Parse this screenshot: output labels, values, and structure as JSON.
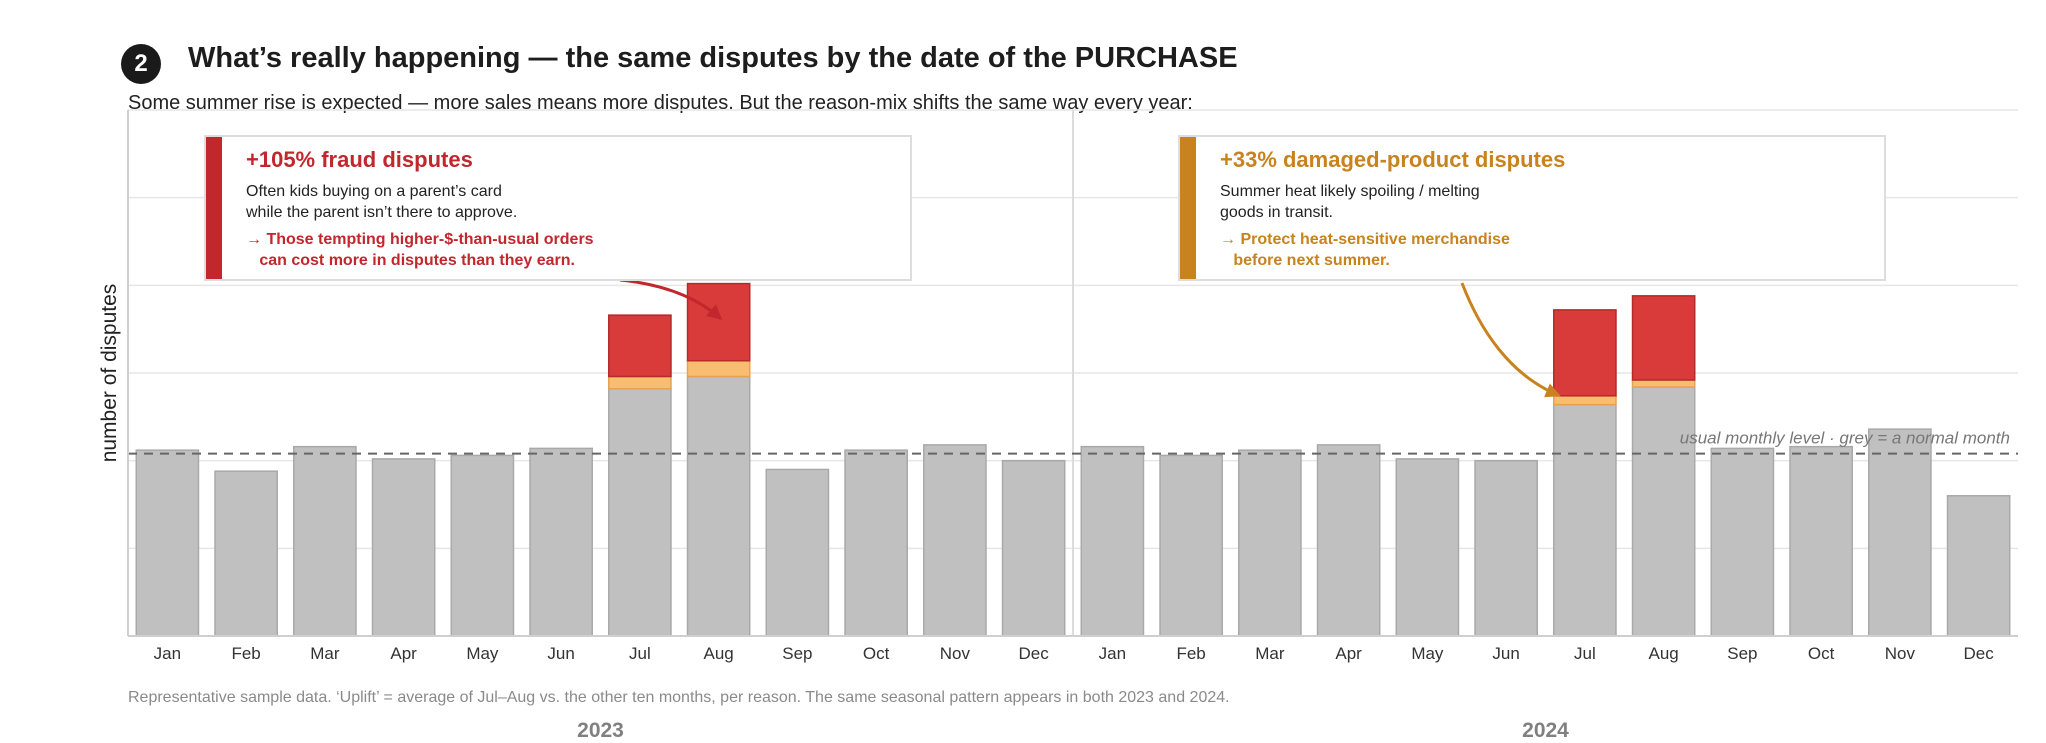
{
  "header": {
    "step_number": "2",
    "title": "What’s really happening — the same disputes by the date of the PURCHASE",
    "subtitle": "Some summer rise is expected — more sales means more disputes. But the reason-mix shifts the same way every year:"
  },
  "annotations": [
    {
      "headline": "+105% fraud disputes",
      "body": [
        "Often kids buying on a parent’s card",
        "while the parent isn’t there to approve."
      ],
      "action": [
        "→ Those tempting higher-$-than-usual orders",
        "   can cost more in disputes than they earn."
      ],
      "color": "#c1272d"
    },
    {
      "headline": "+33% damaged-product disputes",
      "body": [
        "Summer heat likely spoiling / melting",
        "goods in transit."
      ],
      "action": [
        "→ Protect heat-sensitive merchandise",
        "   before next summer."
      ],
      "color": "#c8821e"
    }
  ],
  "footnote": "Representative sample data.  ‘Uplift’ = average of Jul–Aug vs. the other ten months, per reason.  The same seasonal pattern appears in both 2023 and 2024.",
  "chart_data": {
    "type": "bar",
    "stacked": true,
    "ylabel": "number of disputes",
    "ylim": [
      0,
      300
    ],
    "grid": true,
    "months": [
      "Jan",
      "Feb",
      "Mar",
      "Apr",
      "May",
      "Jun",
      "Jul",
      "Aug",
      "Sep",
      "Oct",
      "Nov",
      "Dec"
    ],
    "years": [
      "2023",
      "2024"
    ],
    "series": [
      {
        "color": "#c0c0c0",
        "values": [
          106,
          94,
          108,
          101,
          103,
          107,
          141,
          148,
          95,
          106,
          109,
          100,
          108,
          103,
          106,
          109,
          101,
          100,
          132,
          142,
          107,
          108,
          118,
          80
        ]
      },
      {
        "color": "#f9bd72",
        "values": [
          0,
          0,
          0,
          0,
          0,
          0,
          7,
          9,
          0,
          0,
          0,
          0,
          0,
          0,
          0,
          0,
          0,
          0,
          5,
          4,
          0,
          0,
          0,
          0
        ]
      },
      {
        "color": "#d93a3a",
        "values": [
          0,
          0,
          0,
          0,
          0,
          0,
          35,
          44,
          0,
          0,
          0,
          0,
          0,
          0,
          0,
          0,
          0,
          0,
          49,
          48,
          0,
          0,
          0,
          0
        ]
      }
    ],
    "reference_line": {
      "value": 104,
      "label": "usual monthly level  ·  grey = a normal month"
    }
  }
}
